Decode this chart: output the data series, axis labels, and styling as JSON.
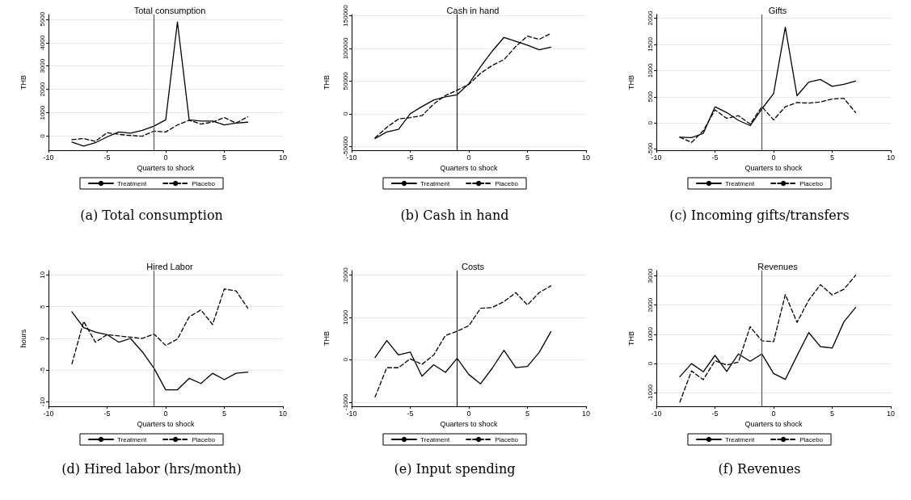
{
  "chart_data": [
    {
      "type": "line",
      "title": "Total consumption",
      "xlabel": "Quarters to shock",
      "ylabel": "THB",
      "annotations": [
        "(a) Total consumption"
      ],
      "x": [
        -8,
        -7,
        -6,
        -5,
        -4,
        -3,
        -2,
        -1,
        0,
        1,
        2,
        3,
        4,
        5,
        6,
        7
      ],
      "xlim": [
        -10,
        10
      ],
      "xticks": [
        -10,
        -5,
        0,
        5,
        10
      ],
      "ylim": [
        -600,
        5200
      ],
      "yticks": [
        0,
        1000,
        2000,
        3000,
        4000,
        5000
      ],
      "grid": "y",
      "legend": "bottom",
      "marker": "none",
      "ref_lines": [
        {
          "axis": "x",
          "value": -1,
          "color": "#555555"
        }
      ],
      "series": [
        {
          "name": "Treatment",
          "color": "#000000",
          "line_style": "solid",
          "values": [
            -250,
            -420,
            -280,
            -30,
            180,
            130,
            250,
            430,
            700,
            4880,
            700,
            650,
            650,
            480,
            560,
            600
          ]
        },
        {
          "name": "Placebo",
          "color": "#000000",
          "line_style": "dashed",
          "values": [
            -150,
            -100,
            -220,
            150,
            80,
            30,
            0,
            220,
            180,
            480,
            680,
            520,
            600,
            800,
            560,
            830
          ]
        }
      ]
    },
    {
      "type": "line",
      "title": "Cash in hand",
      "xlabel": "Quarters to shock",
      "ylabel": "THB",
      "annotations": [
        "(b) Cash in hand"
      ],
      "x": [
        -8,
        -7,
        -6,
        -5,
        -4,
        -3,
        -2,
        -1,
        0,
        1,
        2,
        3,
        4,
        5,
        6,
        7
      ],
      "xlim": [
        -10,
        10
      ],
      "xticks": [
        -10,
        -5,
        0,
        5,
        10
      ],
      "ylim": [
        -56000,
        152000
      ],
      "yticks": [
        -50000,
        0,
        50000,
        100000,
        150000
      ],
      "grid": "y",
      "legend": "bottom",
      "marker": "none",
      "ref_lines": [
        {
          "axis": "x",
          "value": -1,
          "color": "#222222"
        }
      ],
      "series": [
        {
          "name": "Treatment",
          "color": "#000000",
          "line_style": "solid",
          "values": [
            -38000,
            -28000,
            -24000,
            0,
            11000,
            21000,
            26000,
            29000,
            46000,
            72000,
            96000,
            117000,
            111000,
            105000,
            98000,
            102000
          ]
        },
        {
          "name": "Placebo",
          "color": "#000000",
          "line_style": "dashed",
          "values": [
            -37000,
            -21000,
            -8000,
            -6000,
            -3000,
            15000,
            28000,
            36000,
            45000,
            62000,
            74000,
            83000,
            103000,
            119000,
            114000,
            123000
          ]
        }
      ]
    },
    {
      "type": "line",
      "title": "Gifts",
      "xlabel": "Quarters to shock",
      "ylabel": "THB",
      "annotations": [
        "(c) Incoming gifts/transfers"
      ],
      "x": [
        -8,
        -7,
        -6,
        -5,
        -4,
        -3,
        -2,
        -1,
        0,
        1,
        2,
        3,
        4,
        5,
        6,
        7
      ],
      "xlim": [
        -10,
        10
      ],
      "xticks": [
        -10,
        -5,
        0,
        5,
        10
      ],
      "ylim": [
        -520,
        2070
      ],
      "yticks": [
        -500,
        0,
        500,
        1000,
        1500,
        2000
      ],
      "grid": "y",
      "legend": "bottom",
      "marker": "none",
      "ref_lines": [
        {
          "axis": "x",
          "value": -1,
          "color": "#555555"
        }
      ],
      "series": [
        {
          "name": "Treatment",
          "color": "#000000",
          "line_style": "solid",
          "values": [
            -270,
            -280,
            -200,
            310,
            200,
            50,
            -50,
            270,
            560,
            1830,
            520,
            780,
            830,
            700,
            740,
            800
          ]
        },
        {
          "name": "Placebo",
          "color": "#000000",
          "line_style": "dashed",
          "values": [
            -270,
            -370,
            -150,
            250,
            90,
            140,
            -20,
            310,
            60,
            310,
            390,
            380,
            400,
            460,
            470,
            200
          ]
        }
      ]
    },
    {
      "type": "line",
      "title": "Hired Labor",
      "xlabel": "Quarters to shock",
      "ylabel": "hours",
      "annotations": [
        "(d) Hired labor (hrs/month)"
      ],
      "x": [
        -8,
        -7,
        -6,
        -5,
        -4,
        -3,
        -2,
        -1,
        0,
        1,
        2,
        3,
        4,
        5,
        6,
        7
      ],
      "xlim": [
        -10,
        10
      ],
      "xticks": [
        -10,
        -5,
        0,
        5,
        10
      ],
      "ylim": [
        -10.7,
        10.7
      ],
      "yticks": [
        -10,
        -5,
        0,
        5,
        10
      ],
      "grid": "y",
      "legend": "bottom",
      "marker": "none",
      "ref_lines": [
        {
          "axis": "x",
          "value": -1,
          "color": "#555555"
        }
      ],
      "series": [
        {
          "name": "Treatment",
          "color": "#000000",
          "line_style": "solid",
          "values": [
            4.2,
            1.7,
            1.0,
            0.6,
            -0.6,
            0,
            -2.1,
            -4.7,
            -8.1,
            -8.1,
            -6.3,
            -7.1,
            -5.5,
            -6.5,
            -5.5,
            -5.3
          ]
        },
        {
          "name": "Placebo",
          "color": "#000000",
          "line_style": "dashed",
          "values": [
            -4,
            2.7,
            -0.6,
            0.6,
            0.4,
            0.2,
            0,
            0.7,
            -1.1,
            -0.1,
            3.4,
            4.5,
            2.2,
            7.8,
            7.5,
            4.8
          ]
        }
      ]
    },
    {
      "type": "line",
      "title": "Costs",
      "xlabel": "Quarters to shock",
      "ylabel": "THB",
      "annotations": [
        "(e) Input spending"
      ],
      "x": [
        -8,
        -7,
        -6,
        -5,
        -4,
        -3,
        -2,
        -1,
        0,
        1,
        2,
        3,
        4,
        5,
        6,
        7
      ],
      "xlim": [
        -10,
        10
      ],
      "xticks": [
        -10,
        -5,
        0,
        5,
        10
      ],
      "ylim": [
        -1100,
        2100
      ],
      "yticks": [
        -1000,
        0,
        1000,
        2000
      ],
      "grid": "y",
      "legend": "bottom",
      "marker": "none",
      "ref_lines": [
        {
          "axis": "x",
          "value": -1,
          "color": "#222222"
        }
      ],
      "series": [
        {
          "name": "Treatment",
          "color": "#000000",
          "line_style": "solid",
          "values": [
            50,
            450,
            110,
            180,
            -390,
            -120,
            -300,
            30,
            -350,
            -570,
            -200,
            220,
            -190,
            -160,
            170,
            660
          ]
        },
        {
          "name": "Placebo",
          "color": "#000000",
          "line_style": "dashed",
          "values": [
            -880,
            -190,
            -190,
            20,
            -110,
            110,
            570,
            670,
            800,
            1210,
            1230,
            1370,
            1580,
            1290,
            1580,
            1740
          ]
        }
      ]
    },
    {
      "type": "line",
      "title": "Revenues",
      "xlabel": "Quarters to shock",
      "ylabel": "THB",
      "annotations": [
        "(f) Revenues"
      ],
      "x": [
        -8,
        -7,
        -6,
        -5,
        -4,
        -3,
        -2,
        -1,
        0,
        1,
        2,
        3,
        4,
        5,
        6,
        7
      ],
      "xlim": [
        -10,
        10
      ],
      "xticks": [
        -10,
        -5,
        0,
        5,
        10
      ],
      "ylim": [
        -1460,
        3180
      ],
      "yticks": [
        -1000,
        0,
        1000,
        2000,
        3000
      ],
      "grid": "y",
      "legend": "bottom",
      "marker": "none",
      "ref_lines": [
        {
          "axis": "x",
          "value": -1,
          "color": "#555555"
        }
      ],
      "series": [
        {
          "name": "Treatment",
          "color": "#000000",
          "line_style": "solid",
          "values": [
            -450,
            0,
            -280,
            280,
            -270,
            330,
            80,
            330,
            -340,
            -540,
            270,
            1060,
            580,
            530,
            1430,
            1920
          ]
        },
        {
          "name": "Placebo",
          "color": "#000000",
          "line_style": "dashed",
          "values": [
            -1320,
            -250,
            -550,
            100,
            -50,
            50,
            1260,
            780,
            750,
            2360,
            1410,
            2170,
            2700,
            2350,
            2540,
            3020
          ]
        }
      ]
    }
  ]
}
